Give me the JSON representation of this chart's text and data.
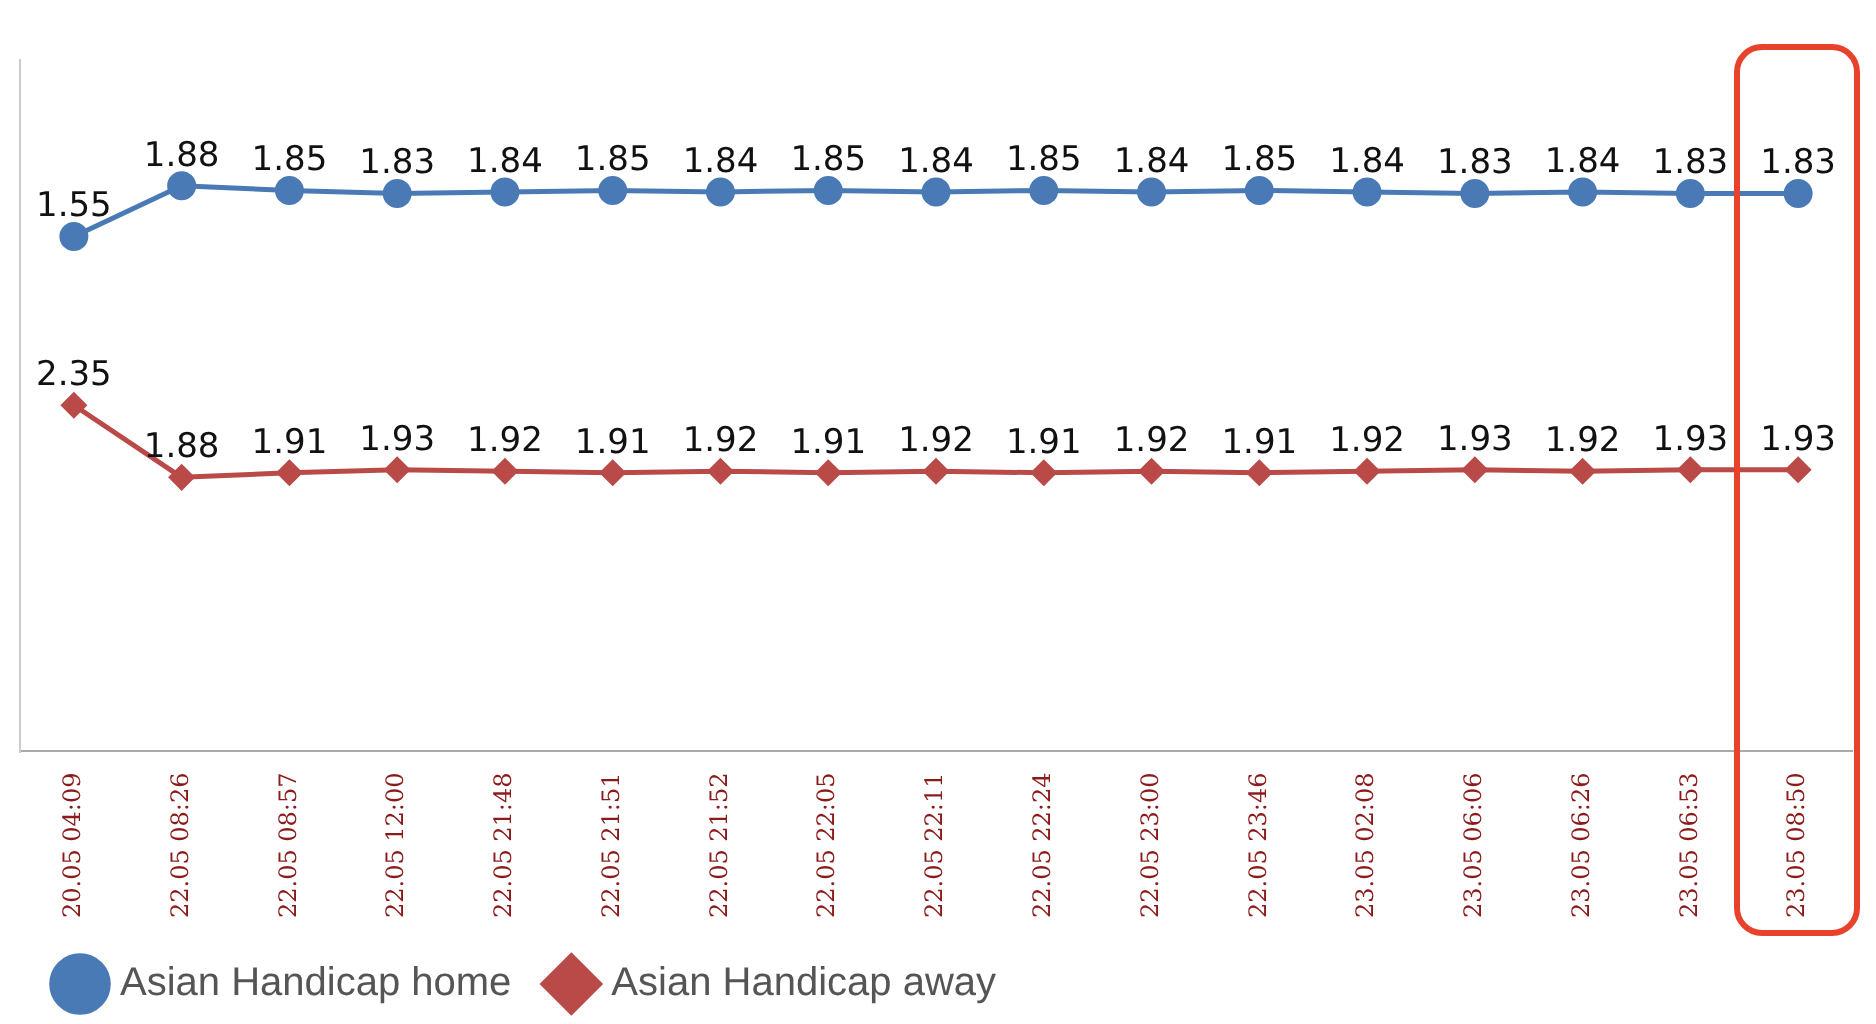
{
  "chart_data": {
    "type": "line",
    "categories": [
      "20.05 04:09",
      "22.05 08:26",
      "22.05 08:57",
      "22.05 12:00",
      "22.05 21:48",
      "22.05 21:51",
      "22.05 21:52",
      "22.05 22:05",
      "22.05 22:11",
      "22.05 22:24",
      "22.05 23:00",
      "22.05 23:46",
      "23.05 02:08",
      "23.05 06:06",
      "23.05 06:26",
      "23.05 06:53",
      "23.05 08:50"
    ],
    "series": [
      {
        "name": "Asian Handicap home",
        "color": "#4a7ab5",
        "marker": "circle",
        "values": [
          1.55,
          1.88,
          1.85,
          1.83,
          1.84,
          1.85,
          1.84,
          1.85,
          1.84,
          1.85,
          1.84,
          1.85,
          1.84,
          1.83,
          1.84,
          1.83,
          1.83
        ]
      },
      {
        "name": "Asian Handicap away",
        "color": "#b94a48",
        "marker": "diamond",
        "axis": "y2",
        "values": [
          2.35,
          1.88,
          1.91,
          1.93,
          1.92,
          1.91,
          1.92,
          1.91,
          1.92,
          1.91,
          1.92,
          1.91,
          1.92,
          1.93,
          1.92,
          1.93,
          1.93
        ]
      }
    ],
    "ylim": [
      -1.8,
      2.7
    ],
    "y2lim": [
      0.1,
      4.6
    ],
    "tick_labels": "x",
    "data_labels": true,
    "legend": "bottom left",
    "line_style": "solid"
  }
}
